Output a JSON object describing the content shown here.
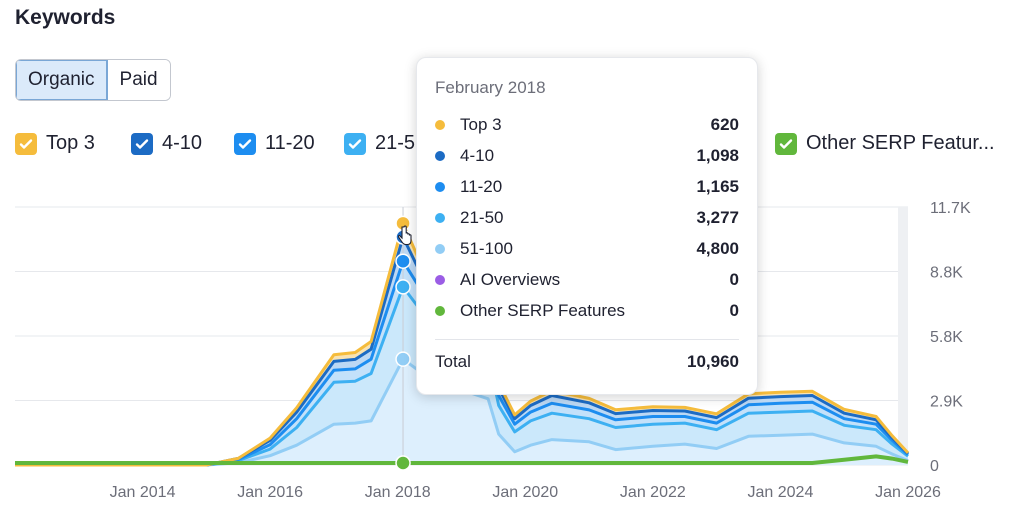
{
  "header": {
    "title": "Keywords"
  },
  "tabs": [
    {
      "label": "Organic",
      "active": true
    },
    {
      "label": "Paid",
      "active": false
    }
  ],
  "legend": [
    {
      "label": "Top 3",
      "color": "#f5bc3c",
      "checked": true
    },
    {
      "label": "4-10",
      "color": "#1c6bc4",
      "checked": true
    },
    {
      "label": "11-20",
      "color": "#1d8df0",
      "checked": true
    },
    {
      "label": "21-5",
      "color": "#3db0f2",
      "checked": true
    },
    {
      "label": "Other SERP Featur...",
      "color": "#61b73c",
      "checked": true
    }
  ],
  "tooltip": {
    "title": "February 2018",
    "rows": [
      {
        "name": "Top 3",
        "value": "620",
        "color": "#f5bc3c"
      },
      {
        "name": "4-10",
        "value": "1,098",
        "color": "#1c6bc4"
      },
      {
        "name": "11-20",
        "value": "1,165",
        "color": "#1d8df0"
      },
      {
        "name": "21-50",
        "value": "3,277",
        "color": "#3db0f2"
      },
      {
        "name": "51-100",
        "value": "4,800",
        "color": "#92cdf5"
      },
      {
        "name": "AI Overviews",
        "value": "0",
        "color": "#9b5de5"
      },
      {
        "name": "Other SERP Features",
        "value": "0",
        "color": "#61b73c"
      }
    ],
    "total_label": "Total",
    "total_value": "10,960"
  },
  "chart_data": {
    "type": "area",
    "stacked": true,
    "x_ticks": [
      "Jan 2014",
      "Jan 2016",
      "Jan 2018",
      "Jan 2020",
      "Jan 2022",
      "Jan 2024",
      "Jan 2026"
    ],
    "y_ticks": [
      "0",
      "2.9K",
      "5.8K",
      "8.8K",
      "11.7K"
    ],
    "ylim": [
      0,
      11700
    ],
    "x_start": "Jan 2012",
    "x_end": "Jan 2026",
    "x": [
      "Jan 2012",
      "Jan 2015",
      "Jul 2015",
      "Jan 2016",
      "Jun 2016",
      "Jan 2017",
      "May 2017",
      "Aug 2017",
      "Feb 2018",
      "Jun 2018",
      "Sep 2018",
      "Jan 2019",
      "Jun 2019",
      "Aug 2019",
      "Nov 2019",
      "Feb 2020",
      "Jun 2020",
      "Jan 2021",
      "Jun 2021",
      "Jan 2022",
      "Jul 2022",
      "Jan 2023",
      "Jul 2023",
      "Jan 2024",
      "Jul 2024",
      "Jan 2025",
      "Jul 2025",
      "Oct 2025",
      "Jan 2026"
    ],
    "series": [
      {
        "name": "51-100",
        "values": [
          0,
          0,
          100,
          420,
          900,
          1850,
          1900,
          2000,
          4800,
          4100,
          3600,
          3400,
          3000,
          1400,
          600,
          900,
          1150,
          1050,
          700,
          850,
          950,
          750,
          1300,
          1350,
          1400,
          1000,
          850,
          500,
          200
        ]
      },
      {
        "name": "21-50",
        "values": [
          0,
          0,
          100,
          300,
          800,
          1900,
          1900,
          2150,
          3277,
          2700,
          2400,
          2300,
          2000,
          1300,
          900,
          1100,
          1200,
          1050,
          1000,
          1000,
          950,
          850,
          1050,
          1050,
          1050,
          800,
          750,
          450,
          200
        ]
      },
      {
        "name": "11-20",
        "values": [
          0,
          0,
          50,
          200,
          400,
          550,
          560,
          650,
          1165,
          900,
          850,
          750,
          700,
          450,
          350,
          400,
          450,
          400,
          350,
          350,
          300,
          300,
          380,
          400,
          400,
          300,
          250,
          170,
          70
        ]
      },
      {
        "name": "4-10",
        "values": [
          0,
          0,
          50,
          200,
          300,
          400,
          430,
          450,
          1098,
          650,
          630,
          550,
          500,
          350,
          250,
          300,
          350,
          320,
          280,
          270,
          250,
          250,
          300,
          300,
          300,
          250,
          200,
          120,
          50
        ]
      },
      {
        "name": "Top 3",
        "values": [
          0,
          0,
          0,
          100,
          200,
          300,
          310,
          350,
          620,
          420,
          400,
          380,
          350,
          220,
          170,
          200,
          220,
          200,
          180,
          170,
          160,
          170,
          200,
          200,
          190,
          170,
          150,
          90,
          30
        ]
      },
      {
        "name": "AI Overviews",
        "values": [
          0,
          0,
          0,
          0,
          0,
          0,
          0,
          0,
          0,
          0,
          0,
          0,
          0,
          0,
          0,
          0,
          0,
          0,
          0,
          0,
          0,
          0,
          0,
          0,
          0,
          0,
          0,
          0,
          0
        ]
      },
      {
        "name": "Other SERP Features",
        "values": [
          0,
          0,
          0,
          0,
          0,
          0,
          0,
          0,
          0,
          0,
          0,
          0,
          0,
          0,
          0,
          0,
          0,
          0,
          0,
          0,
          0,
          0,
          0,
          0,
          0,
          150,
          300,
          200,
          50
        ]
      }
    ],
    "highlight": {
      "x": "Feb 2018"
    },
    "grid": true,
    "legend_placement": "top"
  }
}
